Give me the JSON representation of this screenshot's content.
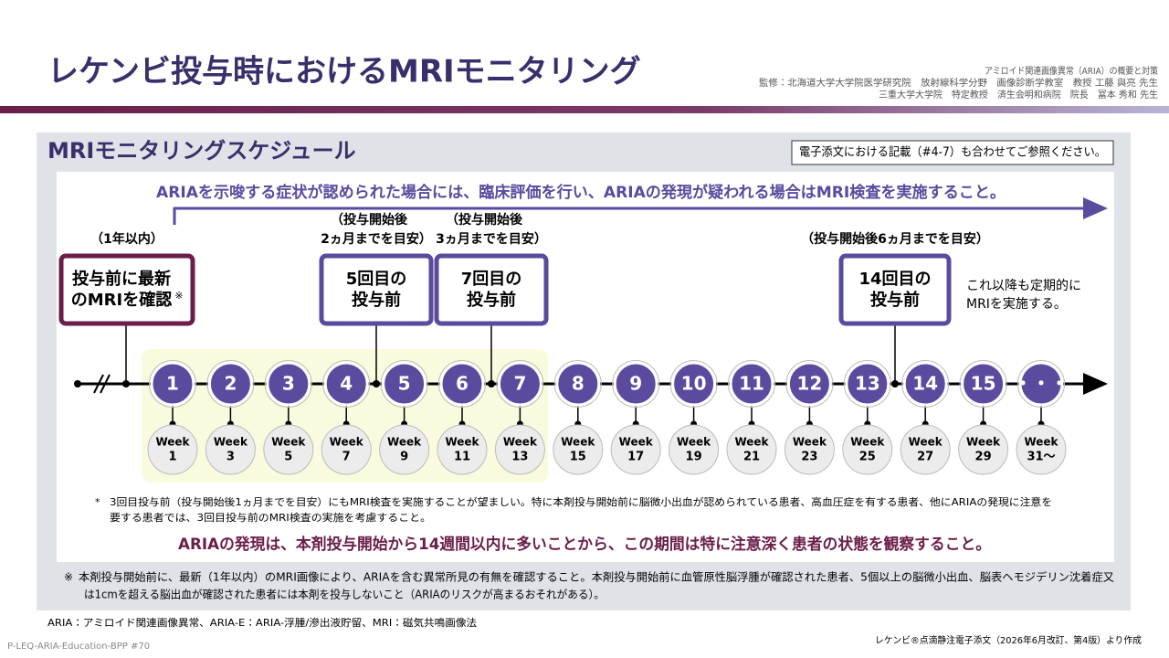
{
  "header": {
    "title": "レケンビ投与時におけるMRIモニタリング",
    "credits": [
      "アミロイド関連画像異常（ARIA）の概要と対策",
      "監修：北海道大学大学院医学研究院　放射線科学分野　画像診断学教室　教授 工藤 與亮 先生",
      "三重大学大学院　特定教授　済生会明和病院　院長　冨本 秀和 先生"
    ]
  },
  "section": {
    "title": "MRIモニタリングスケジュール",
    "reference": "電子添文における記載（#4-7）も合わせてご参照ください。",
    "banner": "ARIAを示唆する症状が認められた場合には、臨床評価を行い、ARIAの発現が疑われる場合はMRI検査を実施すること。"
  },
  "checkpoints": [
    {
      "period": [
        "（1年以内）"
      ],
      "label": [
        "投与前に最新",
        "のMRIを確認"
      ],
      "mark": "※"
    },
    {
      "period": [
        "（投与開始後",
        "2ヵ月までを目安）"
      ],
      "label": [
        "5回目の",
        "投与前"
      ]
    },
    {
      "period": [
        "（投与開始後",
        "3ヵ月までを目安）"
      ],
      "label": [
        "7回目の",
        "投与前"
      ]
    },
    {
      "period": [
        "（投与開始後6ヵ月までを目安）"
      ],
      "label": [
        "14回目の",
        "投与前"
      ]
    }
  ],
  "continuation": [
    "これ以降も定期的に",
    "MRIを実施する。"
  ],
  "timeline": {
    "doses": [
      "1",
      "2",
      "3",
      "4",
      "5",
      "6",
      "7",
      "8",
      "9",
      "10",
      "11",
      "12",
      "13",
      "14",
      "15",
      "・・・"
    ],
    "week_word": "Week",
    "weeks": [
      "1",
      "3",
      "5",
      "7",
      "9",
      "11",
      "13",
      "15",
      "17",
      "19",
      "21",
      "23",
      "25",
      "27",
      "29",
      "31～"
    ]
  },
  "notes": {
    "star_mark": "*",
    "star": [
      "3回目投与前（投与開始後1ヵ月までを目安）にもMRI検査を実施することが望ましい。特に本剤投与開始前に脳微小出血が認められている患者、高血圧症を有する患者、他にARIAの発現に注意を",
      "要する患者では、3回目投与前のMRI検査の実施を考慮すること。"
    ],
    "emphasis": "ARIAの発現は、本剤投与開始から14週間以内に多いことから、この期間は特に注意深く患者の状態を観察すること。",
    "kome_mark": "※",
    "kome": [
      "本剤投与開始前に、最新（1年以内）のMRI画像により、ARIAを含む異常所見の有無を確認すること。本剤投与開始前に血管原性脳浮腫が確認された患者、5個以上の脳微小出血、脳表ヘモジデリン沈着症又",
      "は1cmを超える脳出血が確認された患者には本剤を投与しないこと（ARIAのリスクが高まるおそれがある）。"
    ]
  },
  "footer": {
    "abbreviations": "ARIA：アミロイド関連画像異常、ARIA-E：ARIA-浮腫/滲出液貯留、MRI：磁気共鳴画像法",
    "source": "レケンビ®点滴静注電子添文（2026年6月改訂、第4版）より作成",
    "code": "P-LEQ-ARIA-Education-BPP #70"
  }
}
